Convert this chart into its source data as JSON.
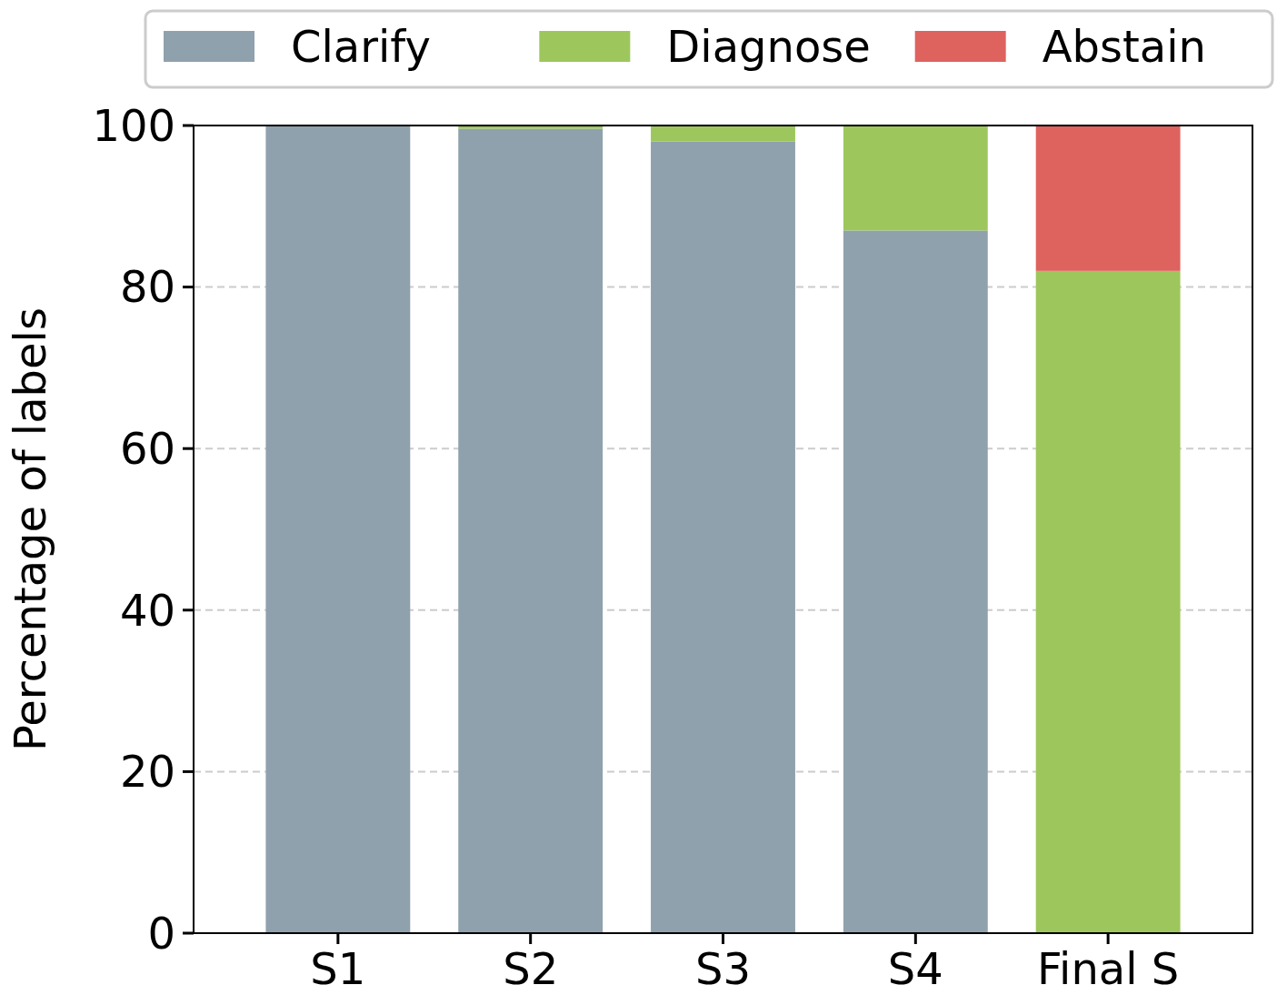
{
  "chart_data": {
    "type": "bar",
    "stacked": true,
    "ylabel": "Percentage of labels",
    "categories": [
      "S1",
      "S2",
      "S3",
      "S4",
      "Final S"
    ],
    "series": [
      {
        "name": "Clarify",
        "color": "#8fa1ad",
        "values": [
          100,
          99.6,
          98,
          87,
          0
        ]
      },
      {
        "name": "Diagnose",
        "color": "#9dc75c",
        "values": [
          0,
          0.4,
          2,
          13,
          82
        ]
      },
      {
        "name": "Abstain",
        "color": "#de625e",
        "values": [
          0,
          0,
          0,
          0,
          18
        ]
      }
    ],
    "ylim": [
      0,
      100
    ],
    "yticks": [
      0,
      20,
      40,
      60,
      80,
      100
    ],
    "grid": "y",
    "legend": "top"
  }
}
